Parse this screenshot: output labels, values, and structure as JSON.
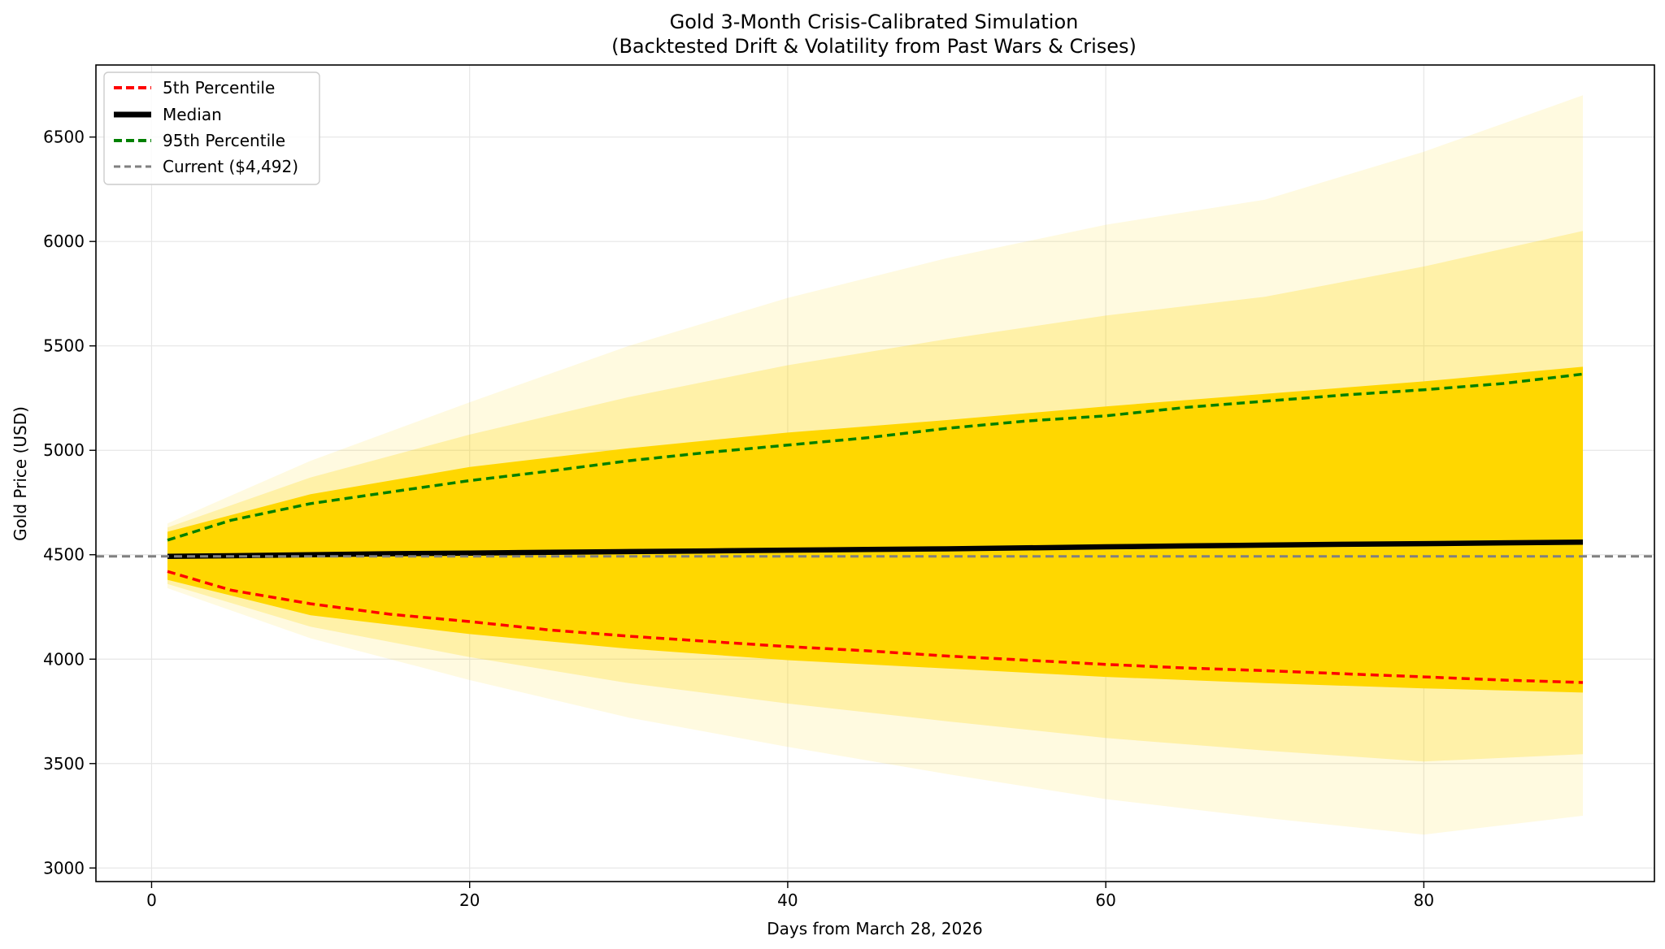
{
  "chart_data": {
    "type": "line",
    "title": "Gold 3-Month Crisis-Calibrated Simulation",
    "subtitle": "(Backtested Drift & Volatility from Past Wars & Crises)",
    "xlabel": "Days from March 28, 2026",
    "ylabel": "Gold Price (USD)",
    "xlim": [
      -3.5,
      94.5
    ],
    "ylim": [
      2935,
      6845
    ],
    "xticks": [
      0,
      20,
      40,
      60,
      80
    ],
    "yticks": [
      3000,
      3500,
      4000,
      4500,
      5000,
      5500,
      6000,
      6500
    ],
    "grid": true,
    "legend_position": "top-left",
    "legend": [
      "5th Percentile",
      "Median",
      "95th Percentile",
      "Current ($4,492)"
    ],
    "current_price": 4492,
    "colors": {
      "p5": "#ff0000",
      "median": "#000000",
      "p95": "#008000",
      "current": "#808080",
      "paths": "#ffd700"
    },
    "x": [
      1,
      5,
      10,
      15,
      20,
      25,
      30,
      35,
      40,
      45,
      50,
      55,
      60,
      65,
      70,
      75,
      80,
      85,
      90
    ],
    "series": [
      {
        "name": "5th Percentile",
        "values": [
          4420,
          4330,
          4265,
          4215,
          4180,
          4140,
          4110,
          4085,
          4060,
          4040,
          4015,
          3995,
          3975,
          3958,
          3945,
          3930,
          3915,
          3900,
          3888
        ]
      },
      {
        "name": "Median",
        "values": [
          4492,
          4495,
          4500,
          4505,
          4508,
          4512,
          4515,
          4518,
          4522,
          4525,
          4528,
          4533,
          4538,
          4542,
          4546,
          4550,
          4553,
          4557,
          4560
        ]
      },
      {
        "name": "95th Percentile",
        "values": [
          4570,
          4665,
          4745,
          4800,
          4855,
          4900,
          4950,
          4990,
          5025,
          5060,
          5105,
          5140,
          5165,
          5205,
          5235,
          5265,
          5290,
          5320,
          5365
        ]
      }
    ],
    "envelope": {
      "x": [
        1,
        10,
        20,
        30,
        40,
        50,
        60,
        70,
        80,
        90
      ],
      "dense_upper": [
        4610,
        4790,
        4920,
        5010,
        5085,
        5145,
        5210,
        5270,
        5330,
        5400
      ],
      "dense_lower": [
        4380,
        4210,
        4120,
        4050,
        3995,
        3955,
        3915,
        3885,
        3860,
        3840
      ],
      "faint_upper": [
        4650,
        4950,
        5230,
        5500,
        5730,
        5920,
        6080,
        6200,
        6430,
        6700
      ],
      "faint_lower": [
        4340,
        4100,
        3900,
        3720,
        3580,
        3450,
        3330,
        3240,
        3160,
        3250
      ]
    }
  }
}
